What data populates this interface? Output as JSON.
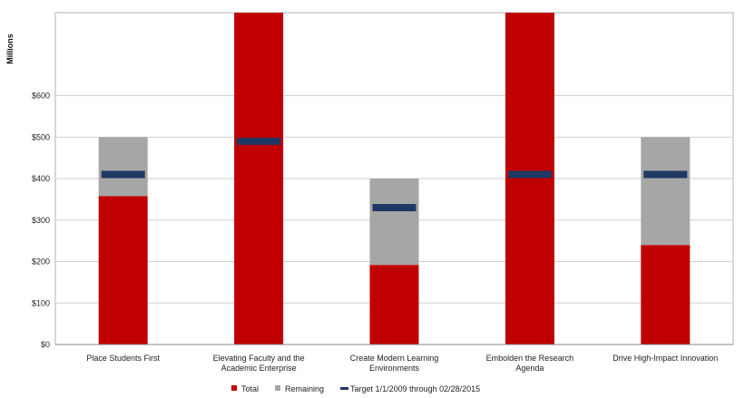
{
  "chart_data": {
    "type": "bar",
    "stacked": true,
    "title": "",
    "ylabel": "Millions",
    "ylim": [
      0,
      800
    ],
    "yticks": [
      "$0",
      "$100",
      "$200",
      "$300",
      "$400",
      "$500",
      "$600"
    ],
    "ytick_values": [
      0,
      100,
      200,
      300,
      400,
      500,
      600
    ],
    "grid": true,
    "legend_position": "bottom",
    "categories": [
      [
        "Place Students First"
      ],
      [
        "Elevating Faculty and the",
        "Academic Enterprise"
      ],
      [
        "Create Modern Learning",
        "Environments"
      ],
      [
        "Embolden the Research",
        "Agenda"
      ],
      [
        "Drive High-Impact Innovation"
      ]
    ],
    "series": [
      {
        "name": "Total",
        "kind": "bar",
        "color": "#c00000",
        "values": [
          358,
          800,
          192,
          800,
          240
        ]
      },
      {
        "name": "Remaining",
        "kind": "bar",
        "color": "#a6a6a6",
        "values": [
          142,
          0,
          208,
          0,
          260
        ]
      },
      {
        "name": "Target 1/1/2009 through 02/28/2015",
        "kind": "marker",
        "color": "#1f3864",
        "values": [
          410,
          490,
          330,
          410,
          410
        ]
      }
    ]
  }
}
